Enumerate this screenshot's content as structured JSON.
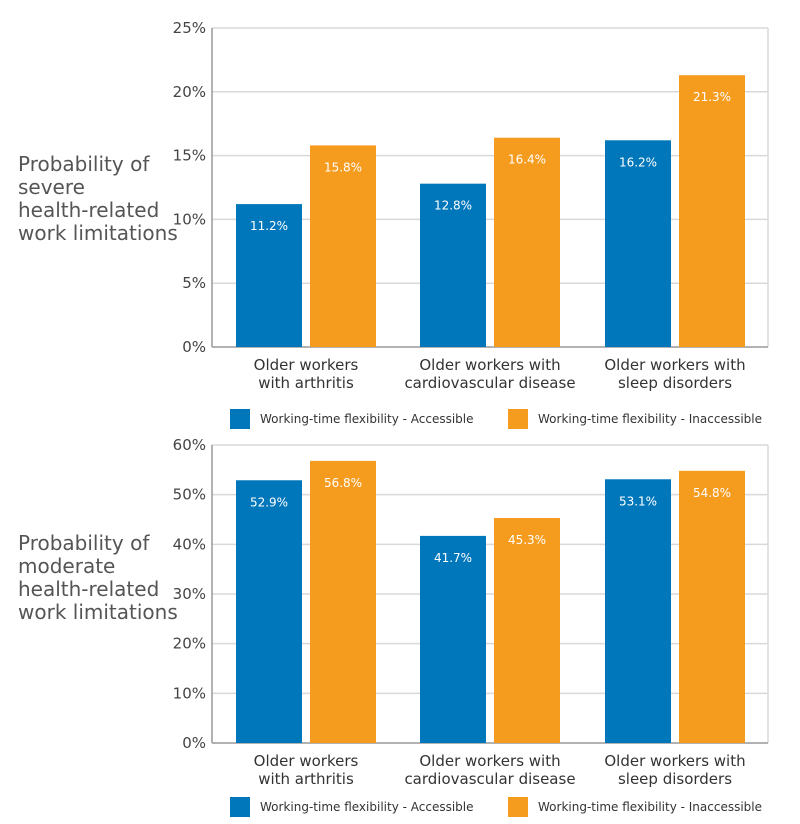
{
  "colors": {
    "accessible": "#0077bb",
    "inaccessible": "#f59b1e",
    "grid": "#d9d9d9",
    "axis": "#999999"
  },
  "chart_data": [
    {
      "type": "bar",
      "ylabel_lines": [
        "Probability of",
        "severe",
        "health-related",
        "work limitations"
      ],
      "categories": [
        [
          "Older workers",
          "with arthritis"
        ],
        [
          "Older workers with",
          "cardiovascular disease"
        ],
        [
          "Older workers with",
          "sleep disorders"
        ]
      ],
      "series": [
        {
          "name": "Working-time flexibility - Accessible",
          "values": [
            11.2,
            12.8,
            16.2
          ],
          "labels": [
            "11.2%",
            "12.8%",
            "16.2%"
          ]
        },
        {
          "name": "Working-time flexibility - Inaccessible",
          "values": [
            15.8,
            16.4,
            21.3
          ],
          "labels": [
            "15.8%",
            "16.4%",
            "21.3%"
          ]
        }
      ],
      "ylim": [
        0,
        25
      ],
      "yticks": [
        0,
        5,
        10,
        15,
        20,
        25
      ],
      "ytick_labels": [
        "0%",
        "5%",
        "10%",
        "15%",
        "20%",
        "25%"
      ],
      "grid": true,
      "legend": "bottom"
    },
    {
      "type": "bar",
      "ylabel_lines": [
        "Probability of",
        "moderate",
        "health-related",
        "work limitations"
      ],
      "categories": [
        [
          "Older workers",
          "with arthritis"
        ],
        [
          "Older workers with",
          "cardiovascular disease"
        ],
        [
          "Older workers with",
          "sleep disorders"
        ]
      ],
      "series": [
        {
          "name": "Working-time flexibility - Accessible",
          "values": [
            52.9,
            41.7,
            53.1
          ],
          "labels": [
            "52.9%",
            "41.7%",
            "53.1%"
          ]
        },
        {
          "name": "Working-time flexibility - Inaccessible",
          "values": [
            56.8,
            45.3,
            54.8
          ],
          "labels": [
            "56.8%",
            "45.3%",
            "54.8%"
          ]
        }
      ],
      "ylim": [
        0,
        60
      ],
      "yticks": [
        0,
        10,
        20,
        30,
        40,
        50,
        60
      ],
      "ytick_labels": [
        "0%",
        "10%",
        "20%",
        "30%",
        "40%",
        "50%",
        "60%"
      ],
      "grid": true,
      "legend": "bottom"
    }
  ]
}
